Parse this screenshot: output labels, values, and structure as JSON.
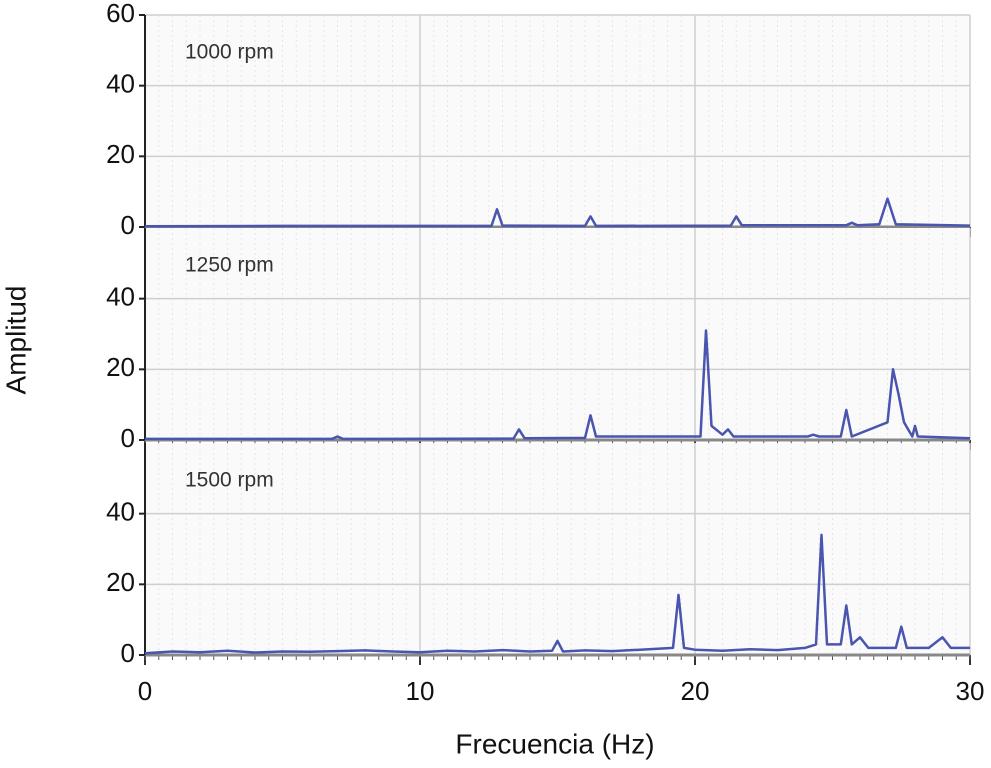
{
  "chart_data": [
    {
      "type": "line",
      "annotation": "1000 rpm",
      "xlim": [
        0,
        30
      ],
      "xticks": [
        0,
        10,
        20,
        30
      ],
      "ylim": [
        0,
        60
      ],
      "yticks": [
        0,
        20,
        40,
        60
      ],
      "grid": true,
      "color": "#4a55b0",
      "x": [
        0,
        5,
        12.6,
        12.8,
        13.0,
        16.0,
        16.2,
        16.4,
        21.3,
        21.5,
        21.7,
        25.5,
        25.7,
        25.9,
        26.7,
        27.0,
        27.3,
        30
      ],
      "values": [
        0.2,
        0.3,
        0.3,
        5,
        0.4,
        0.3,
        3,
        0.3,
        0.4,
        3,
        0.5,
        0.5,
        1.2,
        0.5,
        0.8,
        8,
        0.8,
        0.4
      ]
    },
    {
      "type": "line",
      "annotation": "1250 rpm",
      "ylabel": "Amplitud",
      "xlim": [
        0,
        30
      ],
      "xticks": [
        0,
        10,
        20,
        30
      ],
      "ylim": [
        0,
        60
      ],
      "yticks": [
        0,
        20,
        40
      ],
      "grid": true,
      "color": "#4a55b0",
      "x": [
        0,
        6.8,
        7,
        7.2,
        13.4,
        13.6,
        13.8,
        16.0,
        16.2,
        16.4,
        20.2,
        20.4,
        20.6,
        21.0,
        21.2,
        21.4,
        24.1,
        24.3,
        24.5,
        25.3,
        25.5,
        25.7,
        27.0,
        27.2,
        27.4,
        27.6,
        27.9,
        28.0,
        28.1,
        30
      ],
      "values": [
        0.3,
        0.3,
        1,
        0.3,
        0.4,
        3,
        0.5,
        0.6,
        7,
        1,
        1,
        31,
        4,
        1.5,
        3,
        1,
        1,
        1.5,
        1,
        1,
        8.5,
        1,
        5,
        20,
        13,
        5,
        1,
        4,
        1,
        0.5
      ]
    },
    {
      "type": "line",
      "annotation": "1500 rpm",
      "xlabel": "Frecuencia (Hz)",
      "xlim": [
        0,
        30
      ],
      "xticks": [
        0,
        10,
        20,
        30
      ],
      "ylim": [
        0,
        60
      ],
      "yticks": [
        0,
        20,
        40
      ],
      "grid": true,
      "color": "#4a55b0",
      "x": [
        0,
        1,
        2,
        3,
        4,
        5,
        6,
        7,
        8,
        9,
        10,
        11,
        12,
        13,
        14,
        14.8,
        15,
        15.2,
        16,
        17,
        18,
        19.2,
        19.4,
        19.6,
        20,
        21,
        22,
        23,
        24,
        24.4,
        24.6,
        24.8,
        25.3,
        25.5,
        25.7,
        26,
        26.3,
        27.3,
        27.5,
        27.7,
        28.5,
        29,
        29.3,
        30
      ],
      "values": [
        0.5,
        1,
        0.8,
        1.2,
        0.7,
        1,
        0.9,
        1.1,
        1.3,
        1,
        0.8,
        1.2,
        1,
        1.4,
        1,
        1.2,
        4,
        1,
        1.3,
        1.1,
        1.5,
        2,
        17,
        2,
        1.5,
        1.2,
        1.6,
        1.4,
        2,
        3,
        34,
        3,
        3,
        14,
        3,
        5,
        2,
        2,
        8,
        2,
        2,
        5,
        2,
        2
      ]
    }
  ]
}
